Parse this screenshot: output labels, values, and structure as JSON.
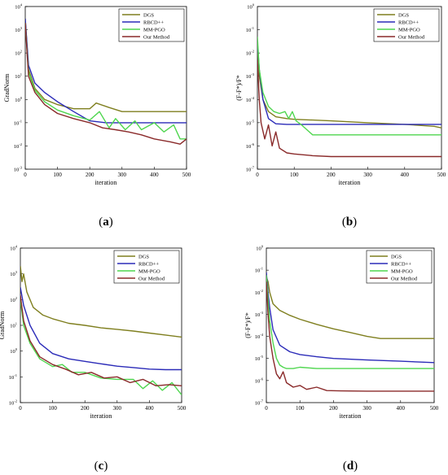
{
  "colors": {
    "DGS": "#7f7f1f",
    "RBCD++": "#2b2bb8",
    "MM-PGO": "#4fd64f",
    "Our Method": "#8a2a2a",
    "frame": "#000000"
  },
  "chart_data": [
    {
      "type": "line",
      "caption": "a",
      "xlabel": "iteration",
      "ylabel": "GradNorm",
      "xlim": [
        0,
        500
      ],
      "ylim_log10": [
        -3,
        4
      ],
      "log_y": true,
      "xticks": [
        "0",
        "100",
        "200",
        "300",
        "400",
        "500"
      ],
      "yticks": [
        {
          "base": "10",
          "exp": "-3"
        },
        {
          "base": "10",
          "exp": "-2"
        },
        {
          "base": "10",
          "exp": "-1"
        },
        {
          "base": "10",
          "exp": "0"
        },
        {
          "base": "10",
          "exp": "1"
        },
        {
          "base": "10",
          "exp": "2"
        },
        {
          "base": "10",
          "exp": "3"
        },
        {
          "base": "10",
          "exp": "4"
        }
      ],
      "legend_position": "top-right",
      "series": [
        {
          "name": "DGS",
          "x": [
            0,
            10,
            30,
            60,
            100,
            150,
            200,
            220,
            260,
            300,
            400,
            500
          ],
          "y": [
            3000,
            20,
            3,
            1,
            0.6,
            0.4,
            0.4,
            0.7,
            0.45,
            0.3,
            0.3,
            0.3
          ]
        },
        {
          "name": "RBCD++",
          "x": [
            0,
            10,
            30,
            60,
            100,
            150,
            200,
            250,
            300,
            400,
            500
          ],
          "y": [
            3000,
            30,
            5,
            2,
            0.8,
            0.3,
            0.12,
            0.1,
            0.1,
            0.1,
            0.1
          ]
        },
        {
          "name": "MM-PGO",
          "x": [
            0,
            10,
            30,
            60,
            100,
            150,
            200,
            230,
            260,
            280,
            310,
            340,
            360,
            400,
            430,
            460,
            480,
            500
          ],
          "y": [
            2000,
            15,
            2.5,
            0.8,
            0.35,
            0.2,
            0.13,
            0.3,
            0.06,
            0.15,
            0.05,
            0.12,
            0.05,
            0.1,
            0.04,
            0.08,
            0.02,
            0.02
          ]
        },
        {
          "name": "Our Method",
          "x": [
            0,
            10,
            30,
            60,
            100,
            150,
            200,
            240,
            280,
            320,
            360,
            400,
            450,
            480,
            500
          ],
          "y": [
            2000,
            10,
            2,
            0.6,
            0.25,
            0.15,
            0.1,
            0.06,
            0.05,
            0.04,
            0.03,
            0.02,
            0.015,
            0.012,
            0.02
          ]
        }
      ]
    },
    {
      "type": "line",
      "caption": "b",
      "xlabel": "iteration",
      "ylabel": "(F-F*)/F*",
      "xlim": [
        0,
        500
      ],
      "ylim_log10": [
        -7,
        0
      ],
      "log_y": true,
      "xticks": [
        "0",
        "100",
        "200",
        "300",
        "400",
        "500"
      ],
      "yticks": [
        {
          "base": "10",
          "exp": "-7"
        },
        {
          "base": "10",
          "exp": "-6"
        },
        {
          "base": "10",
          "exp": "-5"
        },
        {
          "base": "10",
          "exp": "-4"
        },
        {
          "base": "10",
          "exp": "-3"
        },
        {
          "base": "10",
          "exp": "-2"
        },
        {
          "base": "10",
          "exp": "-1"
        },
        {
          "base": "10",
          "exp": "0"
        }
      ],
      "legend_position": "top-right",
      "series": [
        {
          "name": "DGS",
          "x": [
            0,
            5,
            15,
            30,
            50,
            80,
            100,
            150,
            200,
            300,
            400,
            480,
            500
          ],
          "y": [
            0.02,
            0.001,
            0.0001,
            3e-05,
            1.8e-05,
            1.5e-05,
            1.4e-05,
            1.3e-05,
            1.2e-05,
            1e-05,
            8.5e-06,
            7e-06,
            6e-06
          ]
        },
        {
          "name": "RBCD++",
          "x": [
            0,
            5,
            15,
            30,
            50,
            80,
            100,
            200,
            300,
            400,
            500
          ],
          "y": [
            0.03,
            0.002,
            0.0001,
            1.5e-05,
            9e-06,
            8.5e-06,
            8.5e-06,
            8.5e-06,
            8.5e-06,
            8.5e-06,
            8.5e-06
          ]
        },
        {
          "name": "MM-PGO",
          "x": [
            0,
            5,
            15,
            30,
            45,
            60,
            75,
            85,
            95,
            105,
            120,
            150,
            200,
            300,
            400,
            500
          ],
          "y": [
            0.05,
            0.002,
            0.0002,
            5e-05,
            3e-05,
            2.5e-05,
            3e-05,
            1.5e-05,
            3e-05,
            1.2e-05,
            8e-06,
            3e-06,
            3e-06,
            3e-06,
            3e-06,
            3e-06
          ]
        },
        {
          "name": "Our Method",
          "x": [
            0,
            5,
            10,
            20,
            30,
            40,
            50,
            60,
            80,
            100,
            150,
            200,
            300,
            400,
            500
          ],
          "y": [
            0.005,
            0.0001,
            1e-05,
            2e-06,
            8e-06,
            1e-06,
            4e-06,
            8e-07,
            5e-07,
            4.5e-07,
            3.8e-07,
            3.5e-07,
            3.5e-07,
            3.5e-07,
            3.5e-07
          ]
        }
      ]
    },
    {
      "type": "line",
      "caption": "c",
      "xlabel": "iteration",
      "ylabel": "GradNorm",
      "xlim": [
        0,
        500
      ],
      "ylim_log10": [
        -2,
        4
      ],
      "log_y": true,
      "xticks": [
        "0",
        "100",
        "200",
        "300",
        "400",
        "500"
      ],
      "yticks": [
        {
          "base": "10",
          "exp": "-2"
        },
        {
          "base": "10",
          "exp": "-1"
        },
        {
          "base": "10",
          "exp": "0"
        },
        {
          "base": "10",
          "exp": "1"
        },
        {
          "base": "10",
          "exp": "2"
        },
        {
          "base": "10",
          "exp": "3"
        },
        {
          "base": "10",
          "exp": "4"
        }
      ],
      "legend_position": "top-right",
      "series": [
        {
          "name": "DGS",
          "x": [
            0,
            5,
            10,
            20,
            40,
            70,
            100,
            150,
            200,
            250,
            300,
            350,
            400,
            450,
            500
          ],
          "y": [
            2000,
            500,
            1000,
            200,
            50,
            25,
            18,
            12,
            10,
            8,
            7,
            6,
            5,
            4.2,
            3.5
          ]
        },
        {
          "name": "RBCD++",
          "x": [
            0,
            10,
            30,
            60,
            100,
            150,
            200,
            250,
            300,
            350,
            400,
            450,
            500
          ],
          "y": [
            300,
            60,
            10,
            2,
            0.8,
            0.5,
            0.4,
            0.32,
            0.26,
            0.23,
            0.2,
            0.19,
            0.19
          ]
        },
        {
          "name": "MM-PGO",
          "x": [
            0,
            10,
            30,
            60,
            100,
            130,
            160,
            200,
            250,
            300,
            350,
            380,
            410,
            440,
            470,
            500
          ],
          "y": [
            100,
            10,
            2,
            0.5,
            0.25,
            0.3,
            0.15,
            0.15,
            0.09,
            0.08,
            0.08,
            0.035,
            0.07,
            0.03,
            0.06,
            0.02
          ]
        },
        {
          "name": "Our Method",
          "x": [
            0,
            10,
            30,
            60,
            100,
            140,
            180,
            220,
            260,
            300,
            340,
            380,
            420,
            460,
            500
          ],
          "y": [
            150,
            15,
            2.5,
            0.6,
            0.3,
            0.2,
            0.12,
            0.15,
            0.09,
            0.1,
            0.06,
            0.08,
            0.045,
            0.05,
            0.045
          ]
        }
      ]
    },
    {
      "type": "line",
      "caption": "d",
      "xlabel": "iteration",
      "ylabel": "(F-F*)/F*",
      "xlim": [
        0,
        500
      ],
      "ylim_log10": [
        -7,
        0
      ],
      "log_y": true,
      "xticks": [
        "0",
        "100",
        "200",
        "300",
        "400",
        "500"
      ],
      "yticks": [
        {
          "base": "10",
          "exp": "-7"
        },
        {
          "base": "10",
          "exp": "-6"
        },
        {
          "base": "10",
          "exp": "-5"
        },
        {
          "base": "10",
          "exp": "-4"
        },
        {
          "base": "10",
          "exp": "-3"
        },
        {
          "base": "10",
          "exp": "-2"
        },
        {
          "base": "10",
          "exp": "-1"
        },
        {
          "base": "10",
          "exp": "0"
        }
      ],
      "legend_position": "top-right",
      "series": [
        {
          "name": "DGS",
          "x": [
            0,
            5,
            10,
            20,
            40,
            70,
            100,
            150,
            200,
            250,
            300,
            340,
            360,
            400,
            500
          ],
          "y": [
            0.05,
            0.03,
            0.01,
            0.003,
            0.0015,
            0.0009,
            0.0006,
            0.00035,
            0.00022,
            0.00015,
            0.0001,
            8e-05,
            8e-05,
            8e-05,
            8e-05
          ]
        },
        {
          "name": "RBCD++",
          "x": [
            0,
            5,
            10,
            20,
            40,
            70,
            100,
            150,
            200,
            300,
            400,
            500
          ],
          "y": [
            0.08,
            0.01,
            0.002,
            0.0002,
            4e-05,
            2e-05,
            1.5e-05,
            1.2e-05,
            1e-05,
            8.5e-06,
            7.5e-06,
            6.5e-06
          ]
        },
        {
          "name": "MM-PGO",
          "x": [
            0,
            5,
            10,
            20,
            30,
            40,
            50,
            60,
            80,
            100,
            150,
            200,
            300,
            400,
            500
          ],
          "y": [
            0.06,
            0.005,
            0.0005,
            5e-05,
            1e-05,
            5e-06,
            4e-06,
            3.5e-06,
            3.5e-06,
            4e-06,
            3.5e-06,
            3.5e-06,
            3.5e-06,
            3.5e-06,
            3.5e-06
          ]
        },
        {
          "name": "Our Method",
          "x": [
            0,
            5,
            10,
            20,
            30,
            40,
            50,
            60,
            80,
            100,
            120,
            150,
            180,
            220,
            300,
            400,
            500
          ],
          "y": [
            0.03,
            0.001,
            0.0001,
            1e-05,
            2e-06,
            1.2e-06,
            2.5e-06,
            8e-07,
            5e-07,
            6e-07,
            4e-07,
            5e-07,
            3.5e-07,
            3.4e-07,
            3.3e-07,
            3.3e-07,
            3.3e-07
          ]
        }
      ]
    }
  ]
}
